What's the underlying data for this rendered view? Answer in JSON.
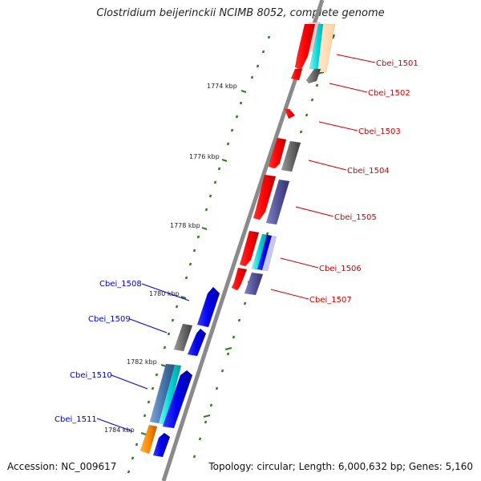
{
  "title": "Clostridium beijerinckii NCIMB 8052, complete genome",
  "footer": {
    "accession": "Accession: NC_009617",
    "summary": "Topology: circular; Length: 6,000,632 bp; Genes: 5,160"
  },
  "colors": {
    "backbone": "#8a8a8a",
    "tick": "#2e7d1e",
    "forward_label": "#cc0000",
    "reverse_label": "#0000cc"
  },
  "kbp_labels": [
    "1774 kbp",
    "1776 kbp",
    "1778 kbp",
    "1780 kbp",
    "1782 kbp",
    "1784 kbp"
  ],
  "gene_labels": {
    "forward": [
      "Cbei_1501",
      "Cbei_1502",
      "Cbei_1503",
      "Cbei_1504",
      "Cbei_1505",
      "Cbei_1506",
      "Cbei_1507"
    ],
    "reverse": [
      "Cbei_1508",
      "Cbei_1509",
      "Cbei_1510",
      "Cbei_1511"
    ]
  }
}
